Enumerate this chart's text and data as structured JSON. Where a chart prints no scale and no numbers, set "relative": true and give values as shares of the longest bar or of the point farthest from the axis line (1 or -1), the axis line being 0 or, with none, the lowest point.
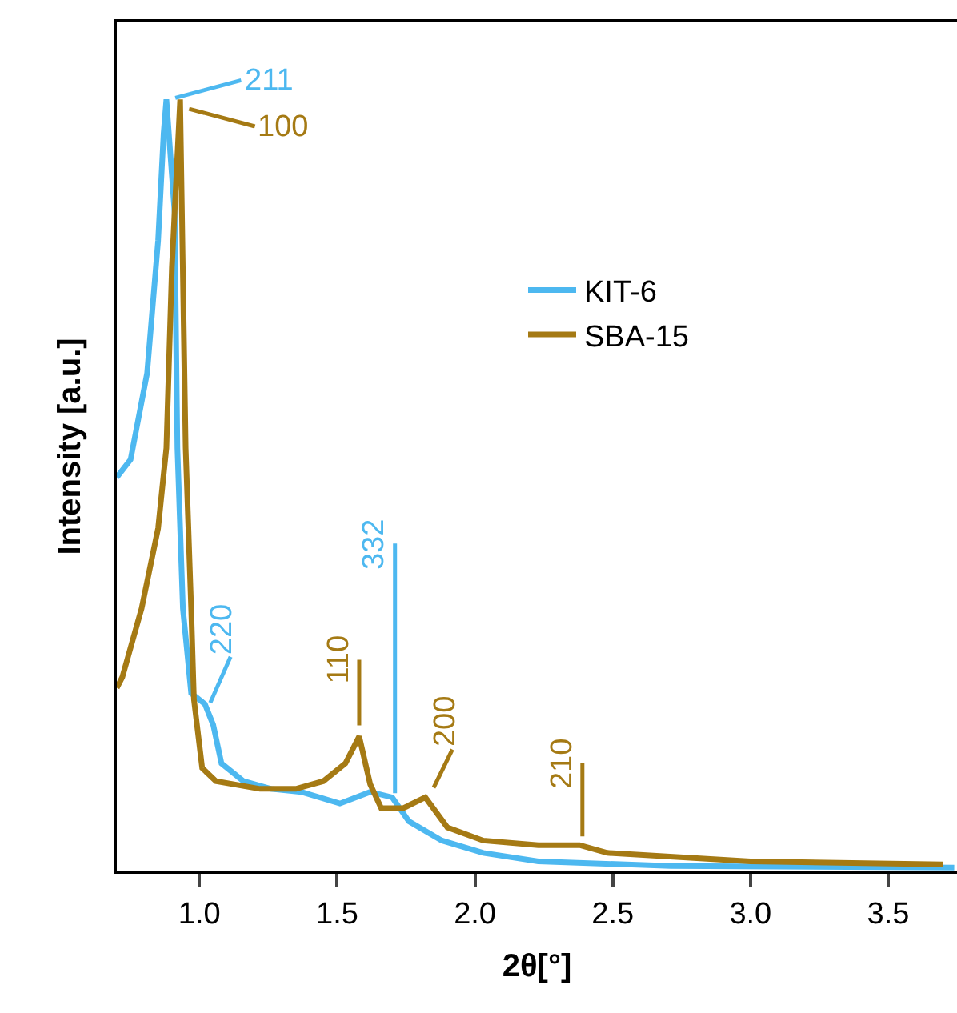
{
  "chart_data": {
    "type": "line",
    "relative": true,
    "xlabel": "2θ[°]",
    "ylabel": "Intensity [a.u.]",
    "xlim": [
      0.7,
      3.75
    ],
    "xticks": [
      {
        "value": 1,
        "label": "1.0"
      },
      1.5,
      {
        "value": 2,
        "label": "2.0"
      },
      2.5,
      {
        "value": 3,
        "label": "3.0"
      },
      3.5
    ],
    "legend": "top right",
    "marker": "none",
    "line_style": "solid",
    "series": [
      {
        "name": "KIT-6",
        "color": "#4db8f0",
        "x": [
          0.7,
          0.75,
          0.81,
          0.85,
          0.87,
          0.88,
          0.91,
          0.92,
          0.94,
          0.97,
          1.02,
          1.05,
          1.08,
          1.16,
          1.26,
          1.37,
          1.51,
          1.62,
          1.7,
          1.76,
          1.88,
          2.03,
          2.23,
          2.71,
          3.74
        ],
        "values": [
          0.51,
          0.533,
          0.645,
          0.817,
          0.956,
          1.0,
          0.853,
          0.548,
          0.34,
          0.23,
          0.216,
          0.189,
          0.139,
          0.116,
          0.106,
          0.102,
          0.087,
          0.102,
          0.095,
          0.064,
          0.039,
          0.023,
          0.012,
          0.006,
          0.004
        ]
      },
      {
        "name": "SBA-15",
        "color": "#a57a14",
        "x": [
          0.7,
          0.72,
          0.79,
          0.85,
          0.88,
          0.9,
          0.93,
          0.95,
          0.97,
          0.98,
          1.01,
          1.06,
          1.22,
          1.35,
          1.45,
          1.53,
          1.58,
          1.62,
          1.66,
          1.74,
          1.82,
          1.9,
          2.03,
          2.23,
          2.38,
          2.48,
          3.0,
          3.7
        ],
        "values": [
          0.237,
          0.251,
          0.34,
          0.444,
          0.548,
          0.782,
          1.0,
          0.548,
          0.34,
          0.222,
          0.133,
          0.116,
          0.106,
          0.106,
          0.116,
          0.139,
          0.174,
          0.112,
          0.081,
          0.081,
          0.095,
          0.056,
          0.039,
          0.033,
          0.033,
          0.023,
          0.012,
          0.008
        ]
      }
    ],
    "annotations": [
      {
        "text": "211",
        "x": 0.89,
        "y": 1.0
      },
      {
        "text": "100",
        "x": 0.94,
        "y": 0.99
      },
      {
        "text": "220",
        "x": 1.03,
        "y": 0.21
      },
      {
        "text": "110",
        "x": 1.58,
        "y": 0.18
      },
      {
        "text": "332",
        "x": 1.71,
        "y": 0.092
      },
      {
        "text": "200",
        "x": 1.84,
        "y": 0.1
      },
      {
        "text": "210",
        "x": 2.39,
        "y": 0.036
      }
    ]
  }
}
